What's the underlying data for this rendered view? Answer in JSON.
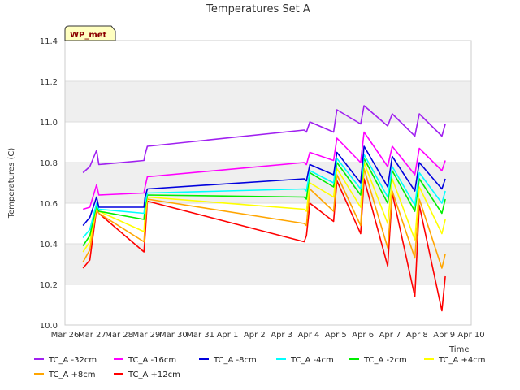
{
  "chart_data": {
    "type": "line",
    "title": "Temperatures Set A",
    "ylabel": "Temperatures (C)",
    "xlabel": "Time",
    "badge": "WP_met",
    "ylim": [
      10.0,
      11.4
    ],
    "yticks": [
      "10.0",
      "10.2",
      "10.4",
      "10.6",
      "10.8",
      "11.0",
      "11.2",
      "11.4"
    ],
    "xlim_days": [
      -1,
      14
    ],
    "xticks": [
      "Mar 26",
      "Mar 27",
      "Mar 28",
      "Mar 29",
      "Mar 30",
      "Mar 31",
      "Apr 1",
      "Apr 2",
      "Apr 3",
      "Apr 4",
      "Apr 5",
      "Apr 6",
      "Apr 7",
      "Apr 8",
      "Apr 9",
      "Apr 10"
    ],
    "grid": true,
    "legend_position": "bottom",
    "x": [
      "Mar 26 16:00",
      "Mar 26 22:00",
      "Mar 27 04:00",
      "Mar 27 06:00",
      "Mar 28 22:00",
      "Mar 28 23:00",
      "Mar 29 01:00",
      "Apr 3 20:00",
      "Apr 3 22:00",
      "Apr 4 01:00",
      "Apr 4 22:00",
      "Apr 5 01:00",
      "Apr 5 22:00",
      "Apr 6 01:00",
      "Apr 6 22:00",
      "Apr 7 02:00",
      "Apr 7 22:00",
      "Apr 8 02:00",
      "Apr 8 22:00",
      "Apr 9 01:00"
    ],
    "series": [
      {
        "name": "TC_A -32cm",
        "color": "#a020f0",
        "values": [
          10.75,
          10.78,
          10.86,
          10.79,
          10.81,
          10.84,
          10.88,
          10.96,
          10.95,
          11.0,
          10.95,
          11.06,
          10.99,
          11.08,
          10.98,
          11.04,
          10.93,
          11.04,
          10.93,
          10.99
        ]
      },
      {
        "name": "TC_A -16cm",
        "color": "#ff00ff",
        "values": [
          10.57,
          10.58,
          10.69,
          10.64,
          10.65,
          10.68,
          10.73,
          10.8,
          10.79,
          10.85,
          10.81,
          10.92,
          10.8,
          10.95,
          10.78,
          10.88,
          10.74,
          10.87,
          10.76,
          10.81
        ]
      },
      {
        "name": "TC_A -8cm",
        "color": "#0000dd",
        "values": [
          10.49,
          10.53,
          10.63,
          10.58,
          10.58,
          10.63,
          10.67,
          10.72,
          10.71,
          10.79,
          10.74,
          10.85,
          10.7,
          10.88,
          10.68,
          10.83,
          10.66,
          10.8,
          10.67,
          10.72
        ]
      },
      {
        "name": "TC_A -4cm",
        "color": "#00ffff",
        "values": [
          10.43,
          10.47,
          10.6,
          10.57,
          10.55,
          10.6,
          10.65,
          10.67,
          10.66,
          10.76,
          10.7,
          10.82,
          10.67,
          10.84,
          10.63,
          10.78,
          10.59,
          10.75,
          10.6,
          10.66
        ]
      },
      {
        "name": "TC_A -2cm",
        "color": "#00ee00",
        "values": [
          10.39,
          10.44,
          10.59,
          10.56,
          10.52,
          10.58,
          10.64,
          10.63,
          10.62,
          10.75,
          10.68,
          10.8,
          10.64,
          10.82,
          10.6,
          10.76,
          10.56,
          10.72,
          10.55,
          10.62
        ]
      },
      {
        "name": "TC_A +4cm",
        "color": "#ffff00",
        "values": [
          10.36,
          10.41,
          10.58,
          10.56,
          10.46,
          10.55,
          10.63,
          10.57,
          10.56,
          10.7,
          10.63,
          10.77,
          10.58,
          10.8,
          10.5,
          10.72,
          10.42,
          10.68,
          10.45,
          10.52
        ]
      },
      {
        "name": "TC_A +8cm",
        "color": "#ffa500",
        "values": [
          10.31,
          10.37,
          10.58,
          10.55,
          10.41,
          10.5,
          10.62,
          10.5,
          10.49,
          10.67,
          10.56,
          10.74,
          10.49,
          10.77,
          10.38,
          10.66,
          10.33,
          10.62,
          10.28,
          10.35
        ]
      },
      {
        "name": "TC_A +12cm",
        "color": "#ff0000",
        "values": [
          10.28,
          10.32,
          10.57,
          10.55,
          10.36,
          10.44,
          10.61,
          10.41,
          10.44,
          10.6,
          10.51,
          10.71,
          10.45,
          10.72,
          10.29,
          10.65,
          10.14,
          10.59,
          10.07,
          10.24
        ]
      }
    ]
  }
}
